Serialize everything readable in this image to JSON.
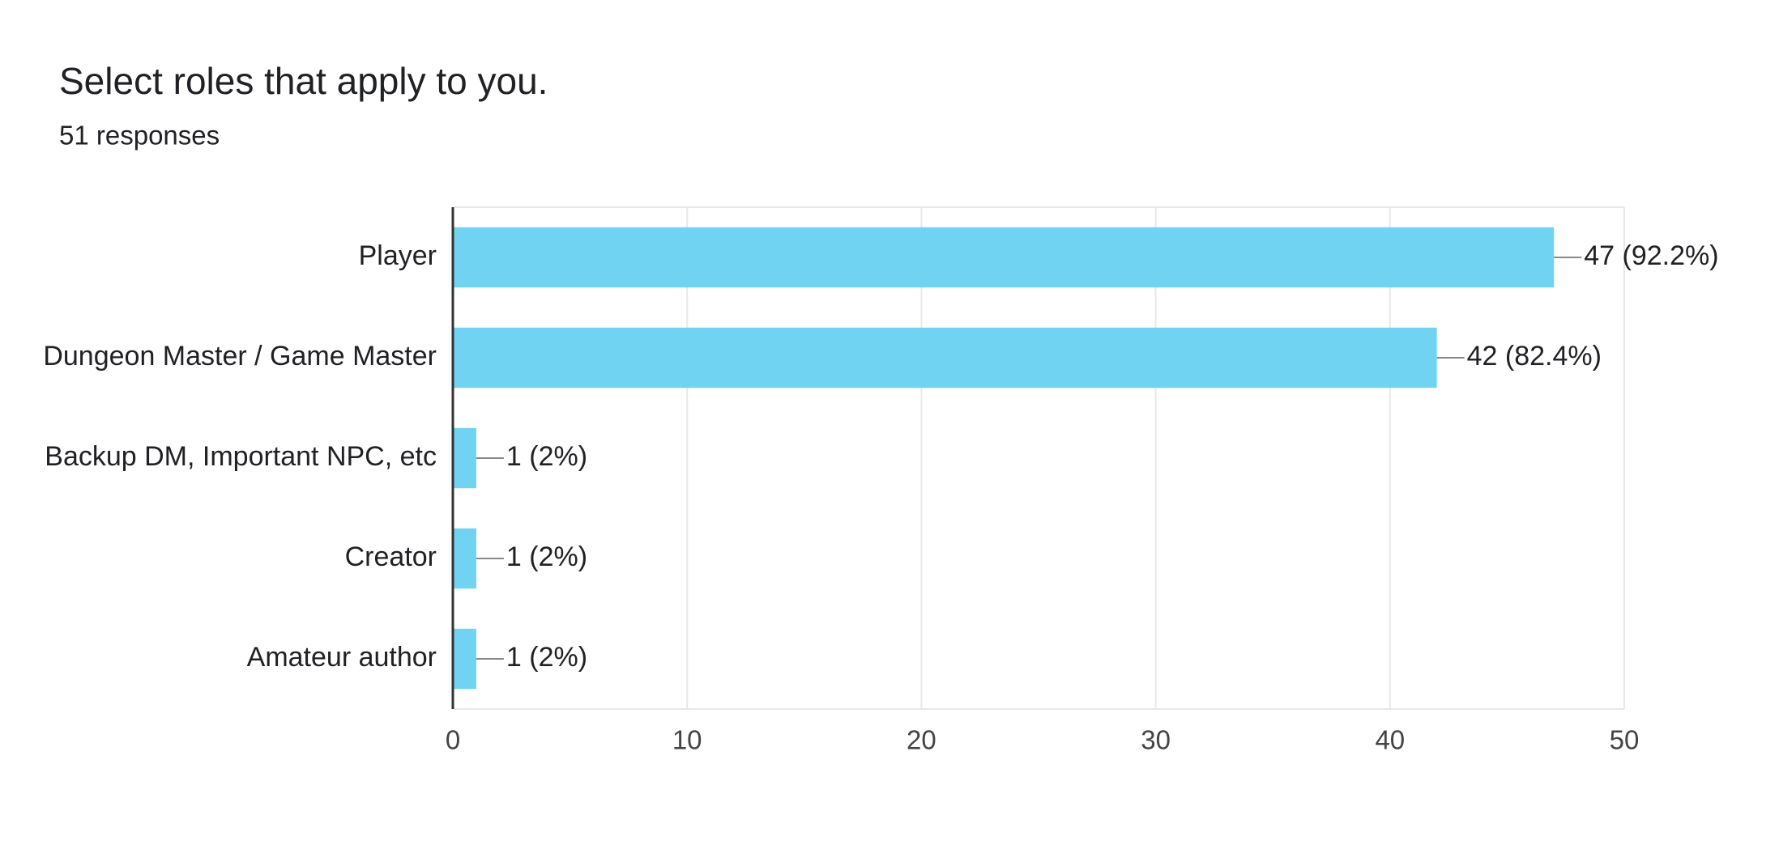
{
  "chart_data": {
    "type": "bar",
    "orientation": "horizontal",
    "title": "Select roles that apply to you.",
    "subtitle": "51 responses",
    "categories": [
      "Player",
      "Dungeon Master / Game Master",
      "Backup DM, Important NPC, etc",
      "Creator",
      "Amateur author"
    ],
    "values": [
      47,
      42,
      1,
      1,
      1
    ],
    "value_labels": [
      "47 (92.2%)",
      "42 (82.4%)",
      "1 (2%)",
      "1 (2%)",
      "1 (2%)"
    ],
    "color": "#71d3f2",
    "xlim": [
      0,
      50
    ],
    "xticks": [
      0,
      10,
      20,
      30,
      40,
      50
    ],
    "grid": true
  }
}
